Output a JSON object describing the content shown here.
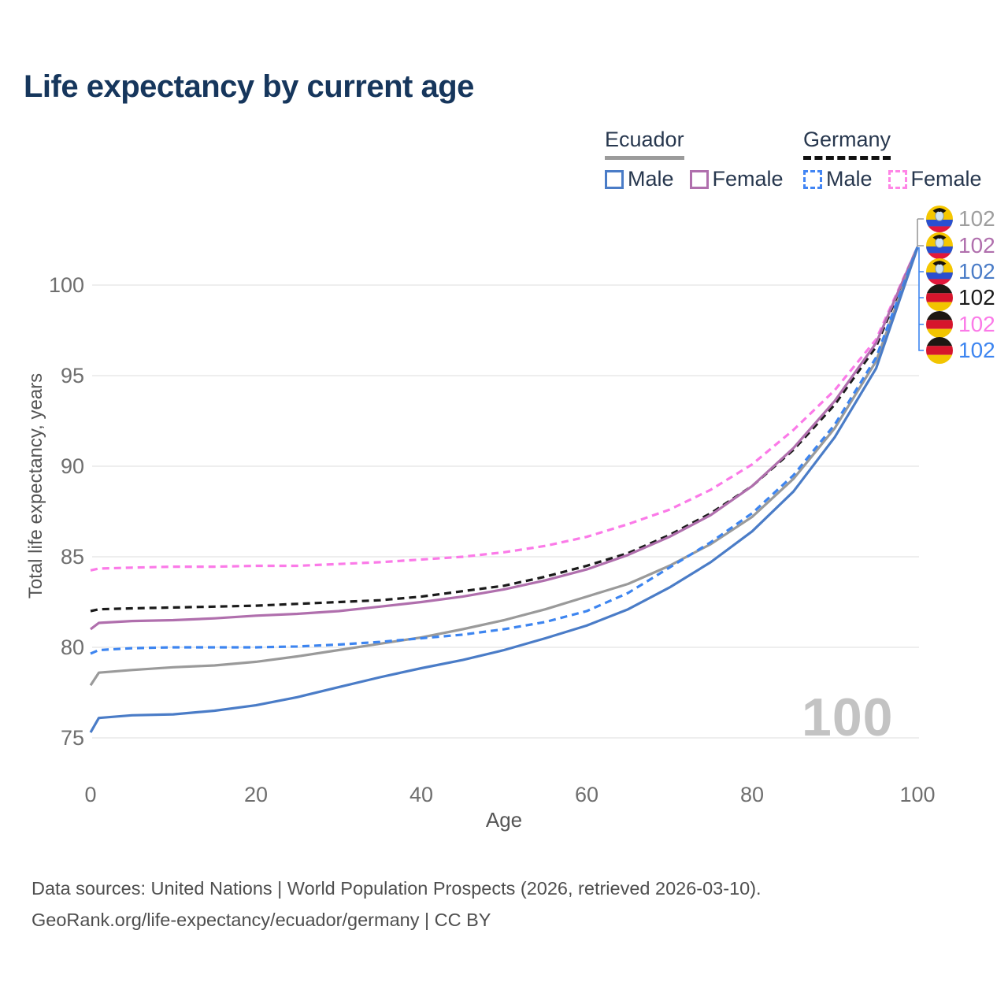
{
  "title": "Life expectancy by current age",
  "legend": {
    "groups": [
      {
        "label": "Ecuador",
        "line_style": "solid",
        "items": [
          {
            "label": "Male",
            "color": "#4a7cc7"
          },
          {
            "label": "Female",
            "color": "#b06fad"
          }
        ]
      },
      {
        "label": "Germany",
        "line_style": "dashed",
        "items": [
          {
            "label": "Male",
            "color": "#4285f4"
          },
          {
            "label": "Female",
            "color": "#ff85e6"
          }
        ]
      }
    ]
  },
  "chart_data": {
    "type": "line",
    "title": "Life expectancy by current age",
    "xlabel": "Age",
    "ylabel": "Total life expectancy, years",
    "xlim": [
      0,
      100
    ],
    "ylim": [
      73.5,
      103
    ],
    "x_ticks": [
      0,
      20,
      40,
      60,
      80,
      100
    ],
    "y_ticks": [
      75,
      80,
      85,
      90,
      95,
      100
    ],
    "grid": "horizontal-only",
    "gridline_color": "#e8e8e8",
    "legend_position": "top-right",
    "series": [
      {
        "name": "Germany Female",
        "country": "Germany",
        "sex": "Female",
        "color": "#fb7ae8",
        "dash": "dashed",
        "end_value": 102,
        "points": [
          [
            0,
            84.25
          ],
          [
            1,
            84.35
          ],
          [
            5,
            84.4
          ],
          [
            10,
            84.45
          ],
          [
            15,
            84.45
          ],
          [
            20,
            84.5
          ],
          [
            25,
            84.5
          ],
          [
            30,
            84.6
          ],
          [
            35,
            84.7
          ],
          [
            40,
            84.85
          ],
          [
            45,
            85.0
          ],
          [
            50,
            85.25
          ],
          [
            55,
            85.6
          ],
          [
            60,
            86.1
          ],
          [
            65,
            86.8
          ],
          [
            70,
            87.6
          ],
          [
            75,
            88.7
          ],
          [
            80,
            90.1
          ],
          [
            85,
            92.0
          ],
          [
            90,
            94.2
          ],
          [
            95,
            97.0
          ],
          [
            100,
            102.1
          ]
        ]
      },
      {
        "name": "Germany All",
        "country": "Germany",
        "sex": "All",
        "color": "#1a1a1a",
        "dash": "dashed",
        "end_value": 102,
        "points": [
          [
            0,
            82.0
          ],
          [
            1,
            82.1
          ],
          [
            5,
            82.15
          ],
          [
            10,
            82.2
          ],
          [
            15,
            82.25
          ],
          [
            20,
            82.3
          ],
          [
            25,
            82.4
          ],
          [
            30,
            82.5
          ],
          [
            35,
            82.6
          ],
          [
            40,
            82.8
          ],
          [
            45,
            83.1
          ],
          [
            50,
            83.4
          ],
          [
            55,
            83.9
          ],
          [
            60,
            84.5
          ],
          [
            65,
            85.2
          ],
          [
            70,
            86.2
          ],
          [
            75,
            87.4
          ],
          [
            80,
            88.9
          ],
          [
            85,
            90.9
          ],
          [
            90,
            93.4
          ],
          [
            95,
            96.6
          ],
          [
            100,
            102.1
          ]
        ]
      },
      {
        "name": "Ecuador Female",
        "country": "Ecuador",
        "sex": "Female",
        "color": "#b06fad",
        "dash": "solid",
        "end_value": 102,
        "points": [
          [
            0,
            81.0
          ],
          [
            1,
            81.35
          ],
          [
            5,
            81.45
          ],
          [
            10,
            81.5
          ],
          [
            15,
            81.6
          ],
          [
            20,
            81.75
          ],
          [
            25,
            81.85
          ],
          [
            30,
            82.0
          ],
          [
            35,
            82.25
          ],
          [
            40,
            82.5
          ],
          [
            45,
            82.8
          ],
          [
            50,
            83.2
          ],
          [
            55,
            83.7
          ],
          [
            60,
            84.3
          ],
          [
            65,
            85.1
          ],
          [
            70,
            86.1
          ],
          [
            75,
            87.3
          ],
          [
            80,
            88.9
          ],
          [
            85,
            91.0
          ],
          [
            90,
            93.6
          ],
          [
            95,
            96.8
          ],
          [
            100,
            102.1
          ]
        ]
      },
      {
        "name": "Ecuador All",
        "country": "Ecuador",
        "sex": "All",
        "color": "#9a9a9a",
        "dash": "solid",
        "end_value": 102,
        "points": [
          [
            0,
            77.9
          ],
          [
            1,
            78.6
          ],
          [
            5,
            78.75
          ],
          [
            10,
            78.9
          ],
          [
            15,
            79.0
          ],
          [
            20,
            79.2
          ],
          [
            25,
            79.5
          ],
          [
            30,
            79.85
          ],
          [
            35,
            80.2
          ],
          [
            40,
            80.55
          ],
          [
            45,
            81.0
          ],
          [
            50,
            81.5
          ],
          [
            55,
            82.1
          ],
          [
            60,
            82.8
          ],
          [
            65,
            83.5
          ],
          [
            70,
            84.5
          ],
          [
            75,
            85.7
          ],
          [
            80,
            87.2
          ],
          [
            85,
            89.3
          ],
          [
            90,
            92.1
          ],
          [
            95,
            95.8
          ],
          [
            100,
            102.1
          ]
        ]
      },
      {
        "name": "Germany Male",
        "country": "Germany",
        "sex": "Male",
        "color": "#3d85f0",
        "dash": "dashed",
        "end_value": 102,
        "points": [
          [
            0,
            79.65
          ],
          [
            1,
            79.85
          ],
          [
            5,
            79.95
          ],
          [
            10,
            80.0
          ],
          [
            15,
            80.0
          ],
          [
            20,
            80.0
          ],
          [
            25,
            80.05
          ],
          [
            30,
            80.15
          ],
          [
            35,
            80.3
          ],
          [
            40,
            80.5
          ],
          [
            45,
            80.7
          ],
          [
            50,
            81.0
          ],
          [
            55,
            81.4
          ],
          [
            60,
            82.0
          ],
          [
            65,
            83.0
          ],
          [
            70,
            84.4
          ],
          [
            75,
            85.8
          ],
          [
            80,
            87.4
          ],
          [
            85,
            89.5
          ],
          [
            90,
            92.3
          ],
          [
            95,
            96.0
          ],
          [
            100,
            102.1
          ]
        ]
      },
      {
        "name": "Ecuador Male",
        "country": "Ecuador",
        "sex": "Male",
        "color": "#4a7cc7",
        "dash": "solid",
        "end_value": 102,
        "points": [
          [
            0,
            75.3
          ],
          [
            1,
            76.1
          ],
          [
            5,
            76.25
          ],
          [
            10,
            76.3
          ],
          [
            15,
            76.5
          ],
          [
            20,
            76.8
          ],
          [
            25,
            77.25
          ],
          [
            30,
            77.8
          ],
          [
            35,
            78.35
          ],
          [
            40,
            78.85
          ],
          [
            45,
            79.3
          ],
          [
            50,
            79.85
          ],
          [
            55,
            80.5
          ],
          [
            60,
            81.2
          ],
          [
            65,
            82.1
          ],
          [
            70,
            83.3
          ],
          [
            75,
            84.7
          ],
          [
            80,
            86.4
          ],
          [
            85,
            88.6
          ],
          [
            90,
            91.6
          ],
          [
            95,
            95.4
          ],
          [
            100,
            102.05
          ]
        ]
      }
    ]
  },
  "end_labels": [
    {
      "flag": "ecuador",
      "value": "102",
      "color": "#9e9e9e",
      "series": "Ecuador All"
    },
    {
      "flag": "ecuador",
      "value": "102",
      "color": "#b06fad",
      "series": "Ecuador Female"
    },
    {
      "flag": "ecuador",
      "value": "102",
      "color": "#4a7cc7",
      "series": "Ecuador Male"
    },
    {
      "flag": "germany",
      "value": "102",
      "color": "#1a1a1a",
      "series": "Germany All"
    },
    {
      "flag": "germany",
      "value": "102",
      "color": "#fb7ae8",
      "series": "Germany Female"
    },
    {
      "flag": "germany",
      "value": "102",
      "color": "#3d85f0",
      "series": "Germany Male"
    }
  ],
  "watermark": "100",
  "footer": {
    "line1": "Data sources: United Nations | World Population Prospects (2026, retrieved 2026-03-10).",
    "line2": "GeoRank.org/life-expectancy/ecuador/germany | CC BY"
  },
  "colors": {
    "title": "#16365c",
    "axis_text": "#6f6f6f",
    "gridline": "#e8e8e8",
    "watermark": "#c3c3c3"
  }
}
